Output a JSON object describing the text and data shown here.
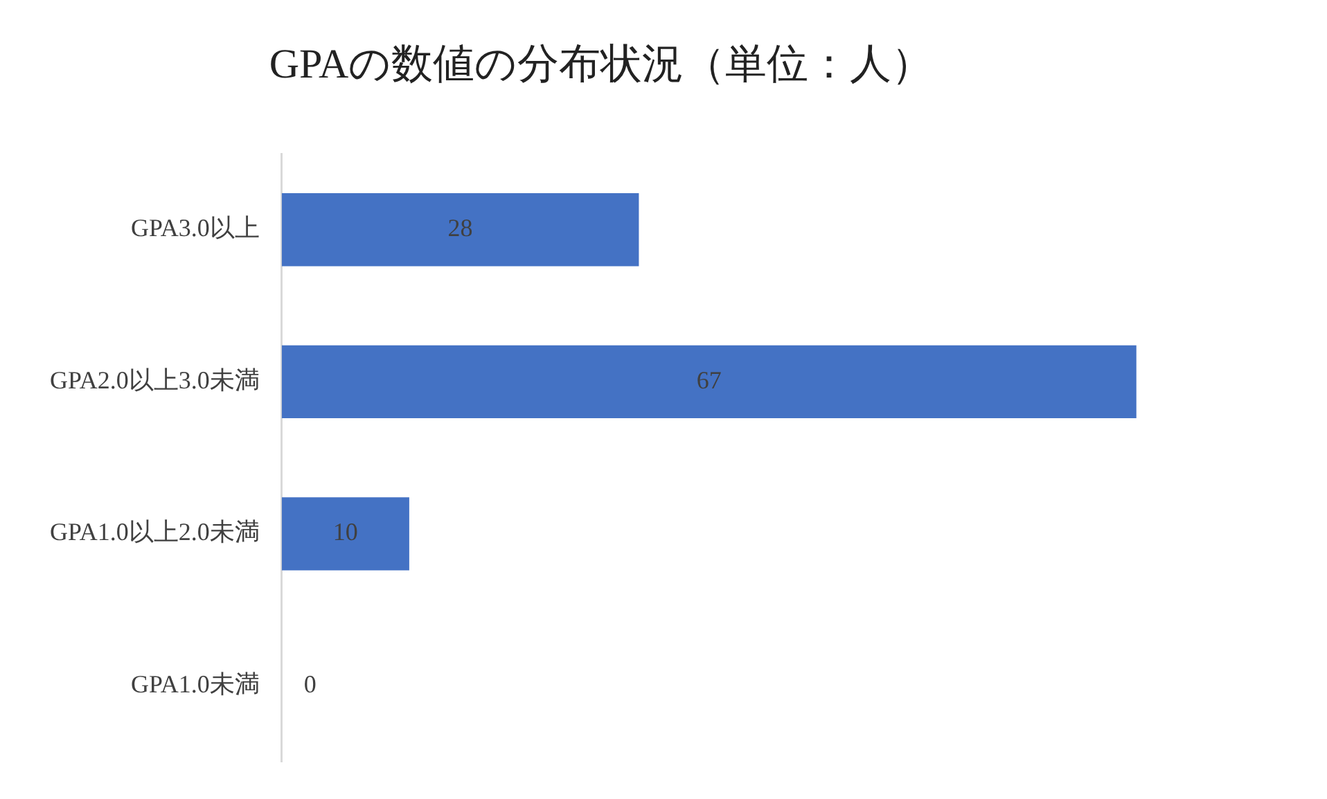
{
  "chart_data": {
    "type": "bar",
    "orientation": "horizontal",
    "title": "GPAの数値の分布状況（単位：人）",
    "categories": [
      "GPA3.0以上",
      "GPA2.0以上3.0未満",
      "GPA1.0以上2.0未満",
      "GPA1.0未満"
    ],
    "values": [
      28,
      67,
      10,
      0
    ],
    "color": "#4472c4",
    "data_labels": true,
    "legend": false,
    "tick_labels": "y"
  }
}
